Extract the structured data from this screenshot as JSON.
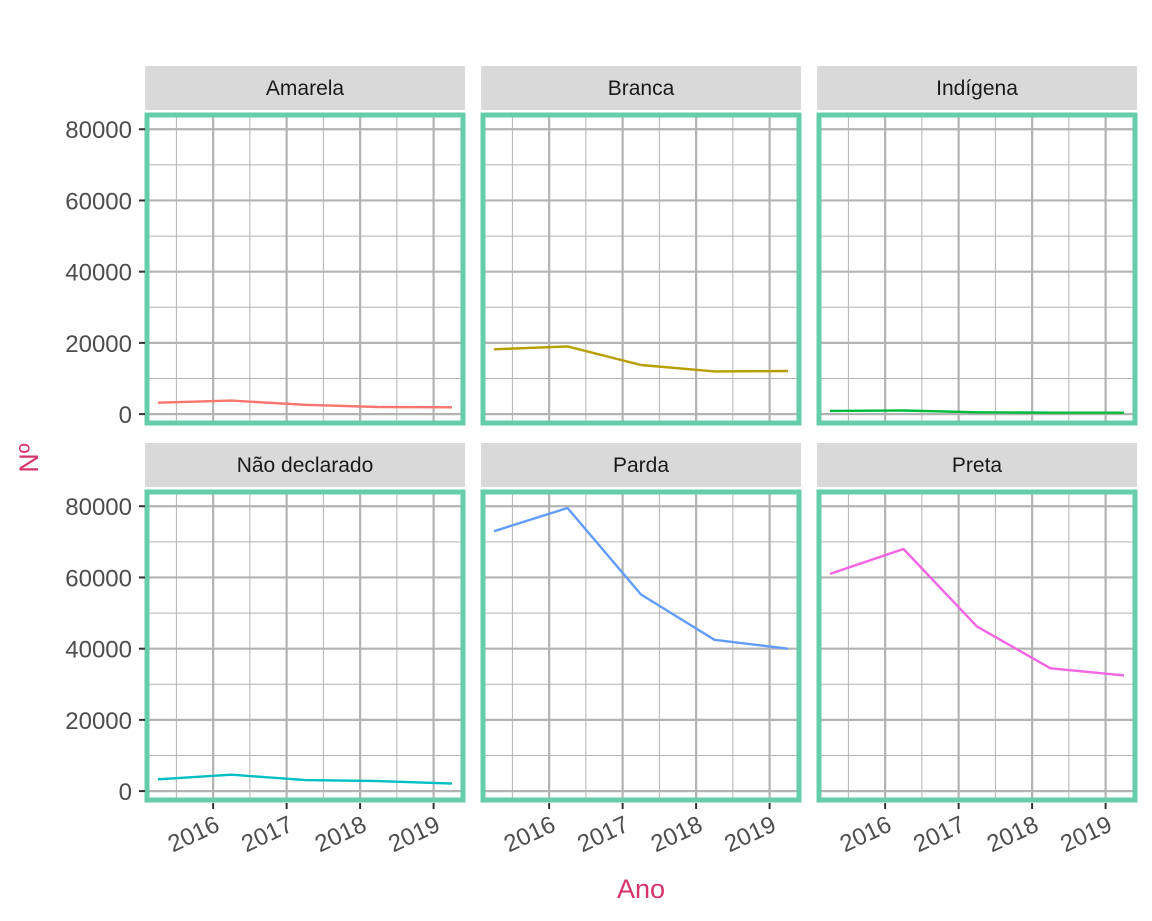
{
  "chart_data": {
    "type": "line",
    "layout": "facet-grid-2x3",
    "x": [
      2015.25,
      2016.25,
      2017.25,
      2018.25,
      2019.25
    ],
    "xlim": [
      2015.1,
      2019.4
    ],
    "x_ticks": [
      2016,
      2017,
      2018,
      2019
    ],
    "x_tick_labels": [
      "2016",
      "2017",
      "2018",
      "2019"
    ],
    "ylim": [
      -2500,
      84000
    ],
    "y_ticks": [
      0,
      20000,
      40000,
      60000,
      80000
    ],
    "y_tick_labels": [
      "0",
      "20000",
      "40000",
      "60000",
      "80000"
    ],
    "xlabel": "Ano",
    "ylabel": "Nº",
    "axis_title_color": "#d6336c",
    "strip_fill": "#d9d9d9",
    "panel_border_color": "#66cdaa",
    "grid_color": "#b3b3b3",
    "grid": true,
    "legend": "none",
    "series": [
      {
        "name": "Amarela",
        "color": "#f8766d",
        "values": [
          3200,
          3800,
          2600,
          2000,
          1900
        ]
      },
      {
        "name": "Branca",
        "color": "#b79f00",
        "values": [
          18200,
          19000,
          13800,
          12000,
          12100
        ]
      },
      {
        "name": "Indígena",
        "color": "#00ba38",
        "values": [
          900,
          1000,
          500,
          400,
          400
        ]
      },
      {
        "name": "Não declarado",
        "color": "#00bfc4",
        "values": [
          3300,
          4600,
          3100,
          2800,
          2100
        ]
      },
      {
        "name": "Parda",
        "color": "#619cff",
        "values": [
          73000,
          79500,
          55200,
          42500,
          40000
        ]
      },
      {
        "name": "Preta",
        "color": "#f564e3",
        "values": [
          61000,
          68000,
          46200,
          34500,
          32500
        ]
      }
    ]
  }
}
